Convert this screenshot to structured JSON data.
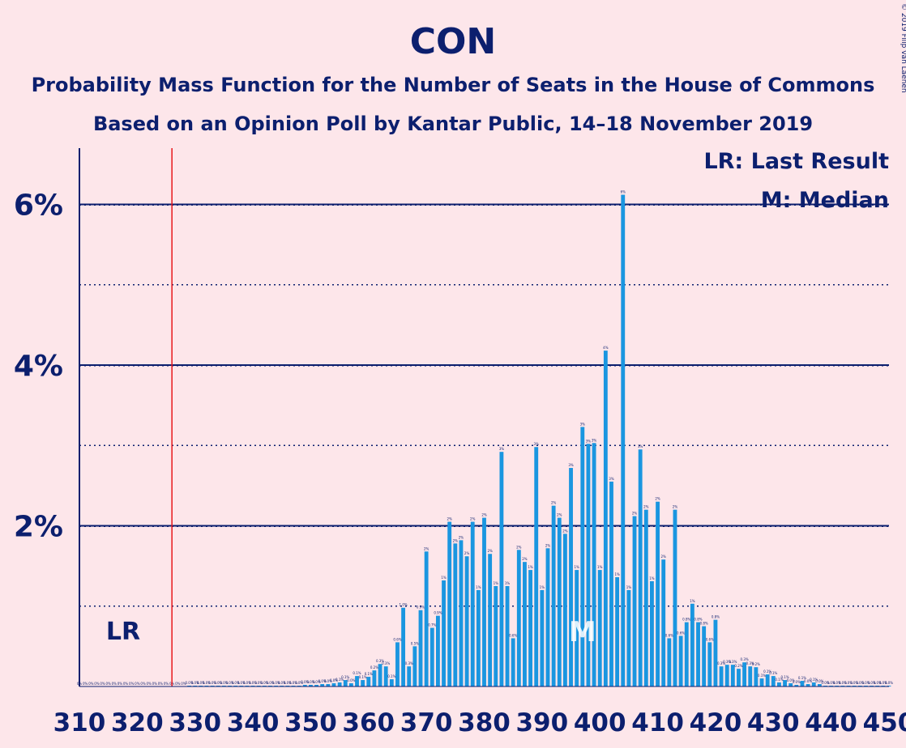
{
  "chart_data": {
    "type": "bar",
    "title": "CON",
    "subtitle1": "Probability Mass Function for the Number of Seats in the House of Commons",
    "subtitle2": "Based on an Opinion Poll by Kantar Public, 14–18 November 2019",
    "copyright": "© 2019 Filip van Laenen",
    "xlabel": "",
    "ylabel": "",
    "xlim": [
      310,
      450
    ],
    "ylim": [
      0,
      6.7
    ],
    "x_ticks": [
      310,
      320,
      330,
      340,
      350,
      360,
      370,
      380,
      390,
      400,
      410,
      420,
      430,
      440,
      450
    ],
    "y_ticks": [
      {
        "value": 2,
        "label": "2%"
      },
      {
        "value": 4,
        "label": "4%"
      },
      {
        "value": 6,
        "label": "6%"
      }
    ],
    "grid": true,
    "bar_color": "#1a96e0",
    "last_result": {
      "seat": 326,
      "label": "LR",
      "color": "#e8171c"
    },
    "median": {
      "seat": 397,
      "label": "M"
    },
    "legend": [
      "LR: Last Result",
      "M: Median"
    ],
    "legend_position": "top-right",
    "x": [
      310,
      311,
      312,
      313,
      314,
      315,
      316,
      317,
      318,
      319,
      320,
      321,
      322,
      323,
      324,
      325,
      326,
      327,
      328,
      329,
      330,
      331,
      332,
      333,
      334,
      335,
      336,
      337,
      338,
      339,
      340,
      341,
      342,
      343,
      344,
      345,
      346,
      347,
      348,
      349,
      350,
      351,
      352,
      353,
      354,
      355,
      356,
      357,
      358,
      359,
      360,
      361,
      362,
      363,
      364,
      365,
      366,
      367,
      368,
      369,
      370,
      371,
      372,
      373,
      374,
      375,
      376,
      377,
      378,
      379,
      380,
      381,
      382,
      383,
      384,
      385,
      386,
      387,
      388,
      389,
      390,
      391,
      392,
      393,
      394,
      395,
      396,
      397,
      398,
      399,
      400,
      401,
      402,
      403,
      404,
      405,
      406,
      407,
      408,
      409,
      410,
      411,
      412,
      413,
      414,
      415,
      416,
      417,
      418,
      419,
      420,
      421,
      422,
      423,
      424,
      425,
      426,
      427,
      428,
      429,
      430,
      431,
      432,
      433,
      434,
      435,
      436,
      437,
      438,
      439,
      440,
      441,
      442,
      443,
      444,
      445,
      446,
      447,
      448,
      449,
      450
    ],
    "values": [
      0,
      0,
      0,
      0,
      0,
      0,
      0,
      0,
      0,
      0,
      0,
      0,
      0,
      0,
      0,
      0,
      0,
      0,
      0,
      0.01,
      0.01,
      0.01,
      0.01,
      0.01,
      0.01,
      0.01,
      0.01,
      0.01,
      0.01,
      0.01,
      0.01,
      0.01,
      0.01,
      0.01,
      0.01,
      0.01,
      0.01,
      0.01,
      0.01,
      0.02,
      0.02,
      0.02,
      0.03,
      0.03,
      0.04,
      0.05,
      0.08,
      0.04,
      0.13,
      0.08,
      0.12,
      0.2,
      0.28,
      0.25,
      0.09,
      0.55,
      0.98,
      0.25,
      0.5,
      0.95,
      1.68,
      0.73,
      0.88,
      1.32,
      2.05,
      1.78,
      1.82,
      1.62,
      2.05,
      1.2,
      2.1,
      1.65,
      1.25,
      2.92,
      1.25,
      0.6,
      1.7,
      1.55,
      1.45,
      2.98,
      1.2,
      1.72,
      2.25,
      2.1,
      1.9,
      2.72,
      1.45,
      3.23,
      3.02,
      3.03,
      1.45,
      4.18,
      2.55,
      1.36,
      6.12,
      1.2,
      2.12,
      2.95,
      2.2,
      1.31,
      2.3,
      1.58,
      0.6,
      2.2,
      0.63,
      0.8,
      1.03,
      0.8,
      0.75,
      0.55,
      0.83,
      0.25,
      0.27,
      0.27,
      0.22,
      0.3,
      0.25,
      0.24,
      0.1,
      0.15,
      0.13,
      0.05,
      0.08,
      0.04,
      0.02,
      0.07,
      0.03,
      0.05,
      0.03,
      0.01,
      0.01,
      0.01,
      0.01,
      0.01,
      0.01,
      0.01,
      0.01,
      0.01,
      0.01,
      0.01,
      0.01
    ]
  }
}
